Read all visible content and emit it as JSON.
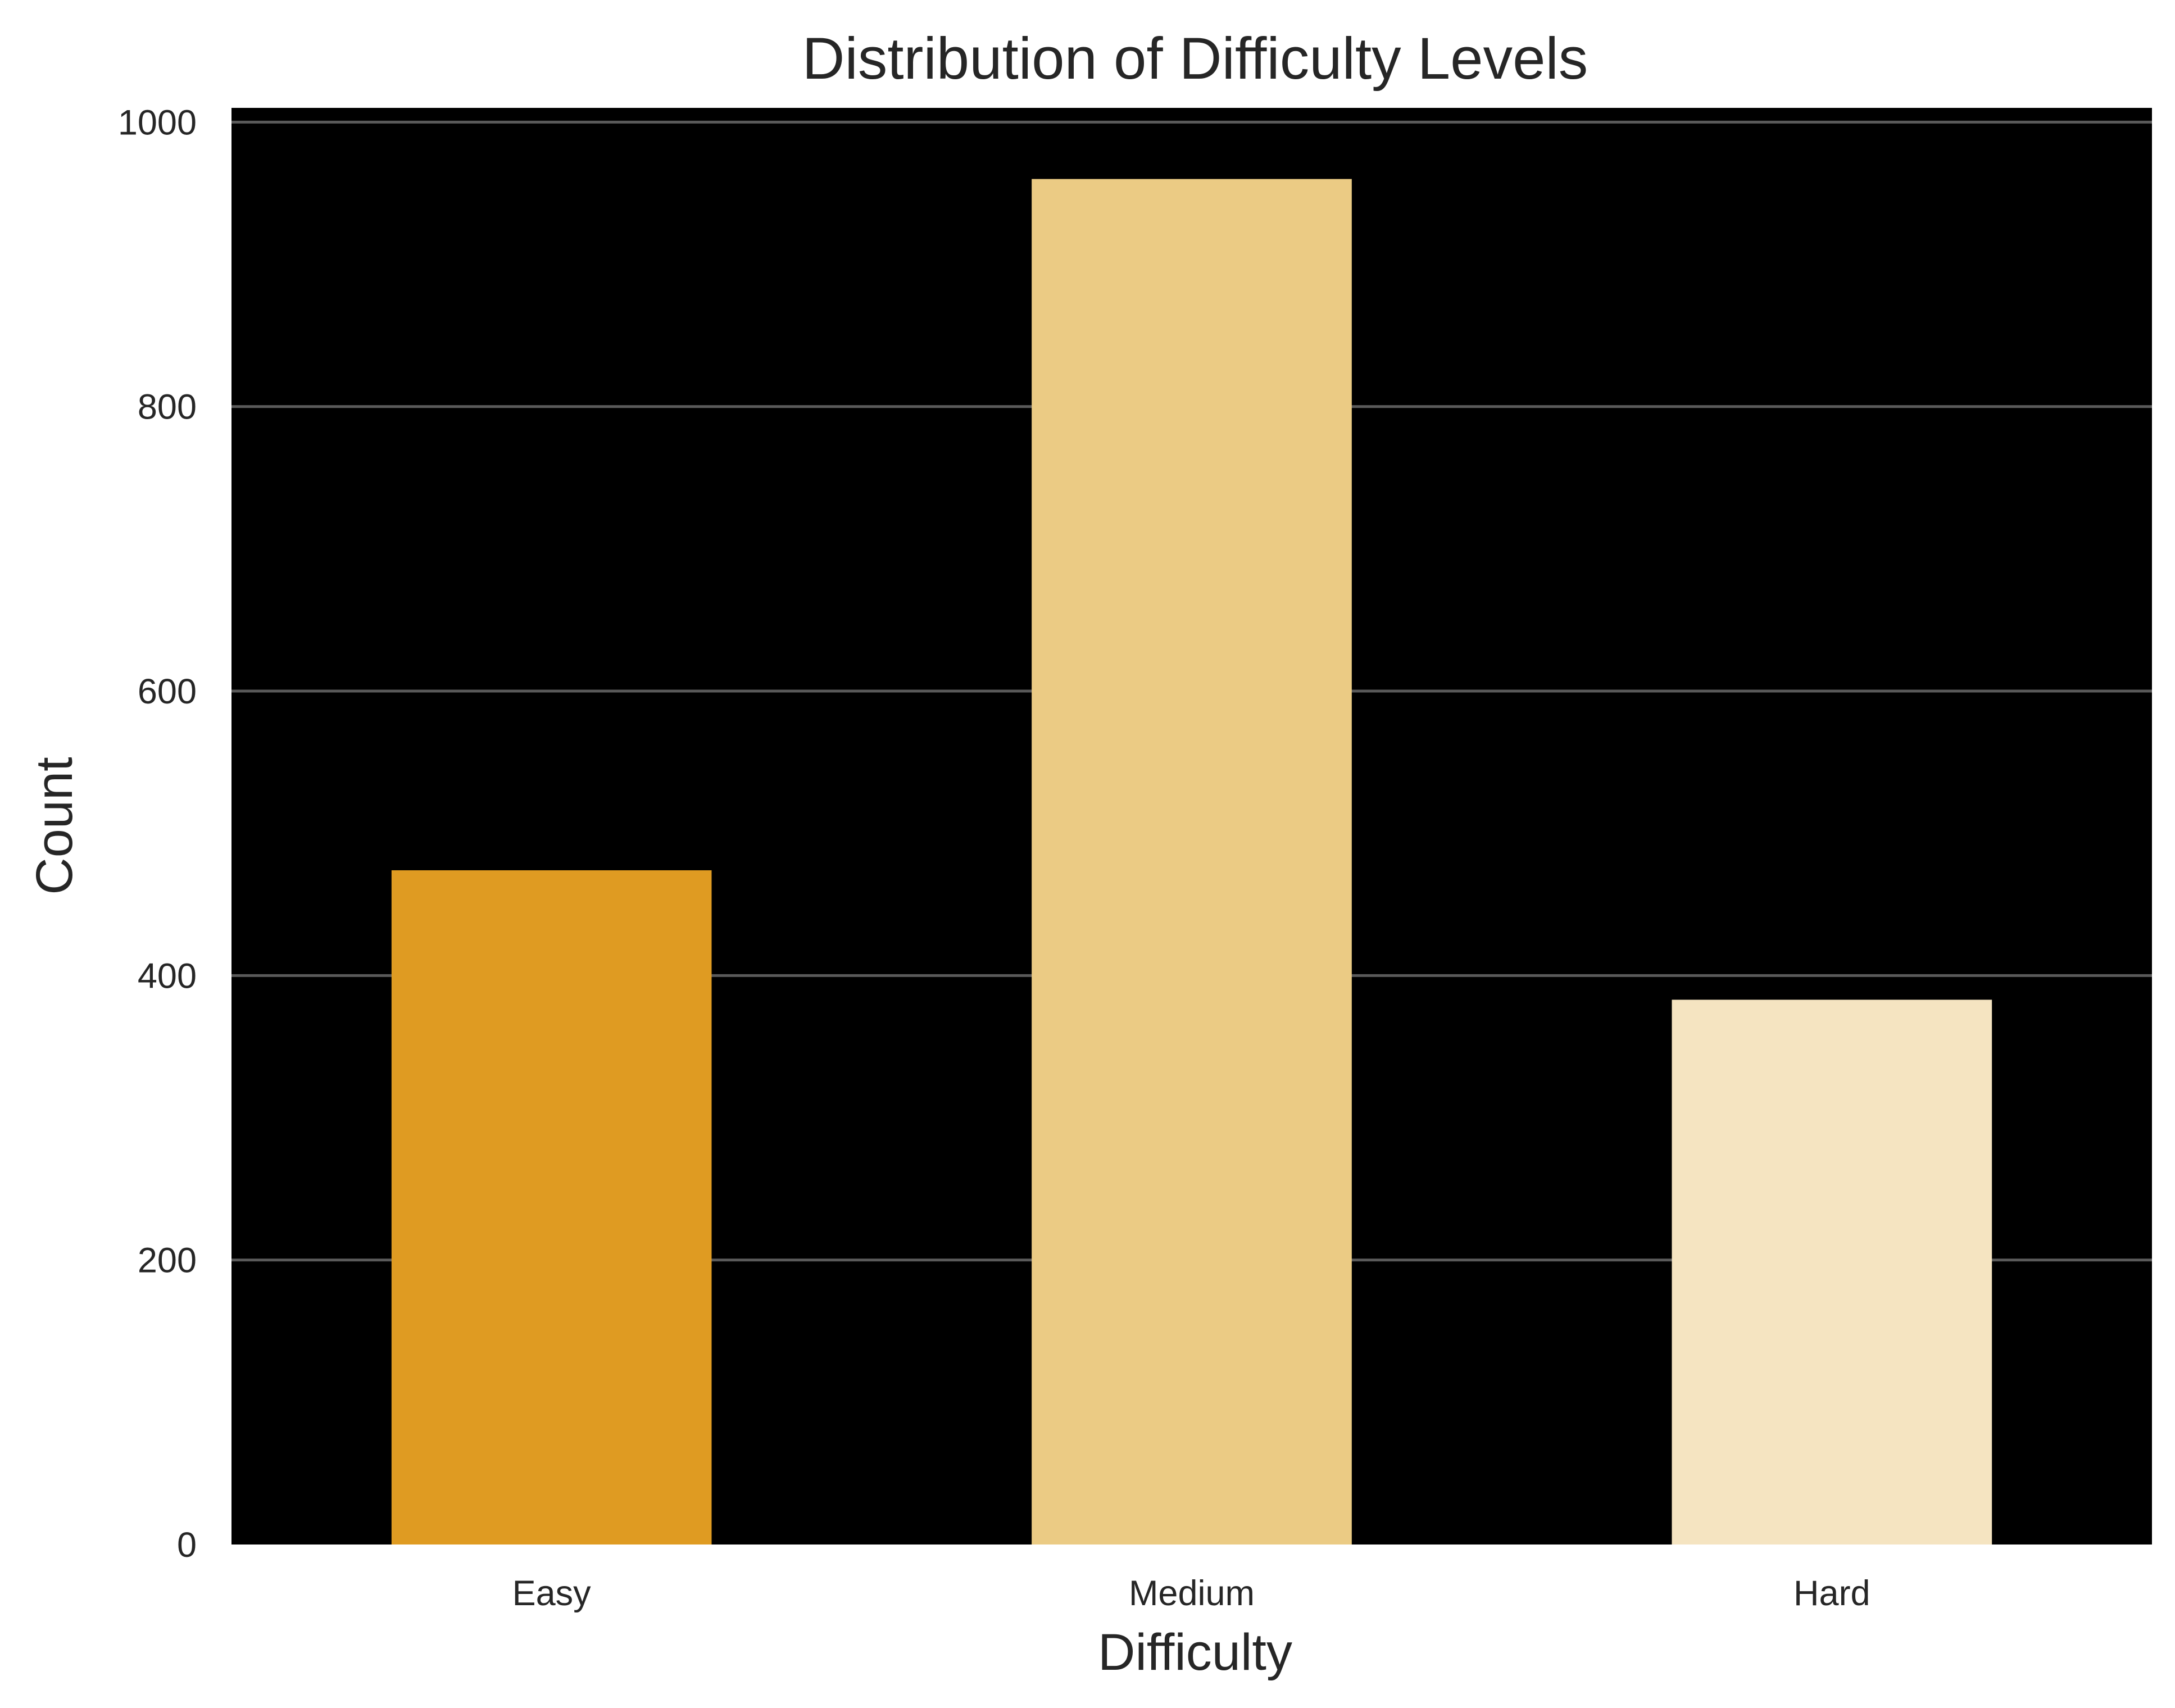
{
  "chart_data": {
    "type": "bar",
    "title": "Distribution of Difficulty Levels",
    "xlabel": "Difficulty",
    "ylabel": "Count",
    "categories": [
      "Easy",
      "Medium",
      "Hard"
    ],
    "values": [
      474,
      960,
      383
    ],
    "ylim": [
      0,
      1010
    ],
    "yticks": [
      0,
      200,
      400,
      600,
      800,
      1000
    ],
    "grid": true,
    "background_color": "#000000",
    "bar_colors": [
      "#df9b22",
      "#ebcb84",
      "#f5e4c1"
    ]
  }
}
